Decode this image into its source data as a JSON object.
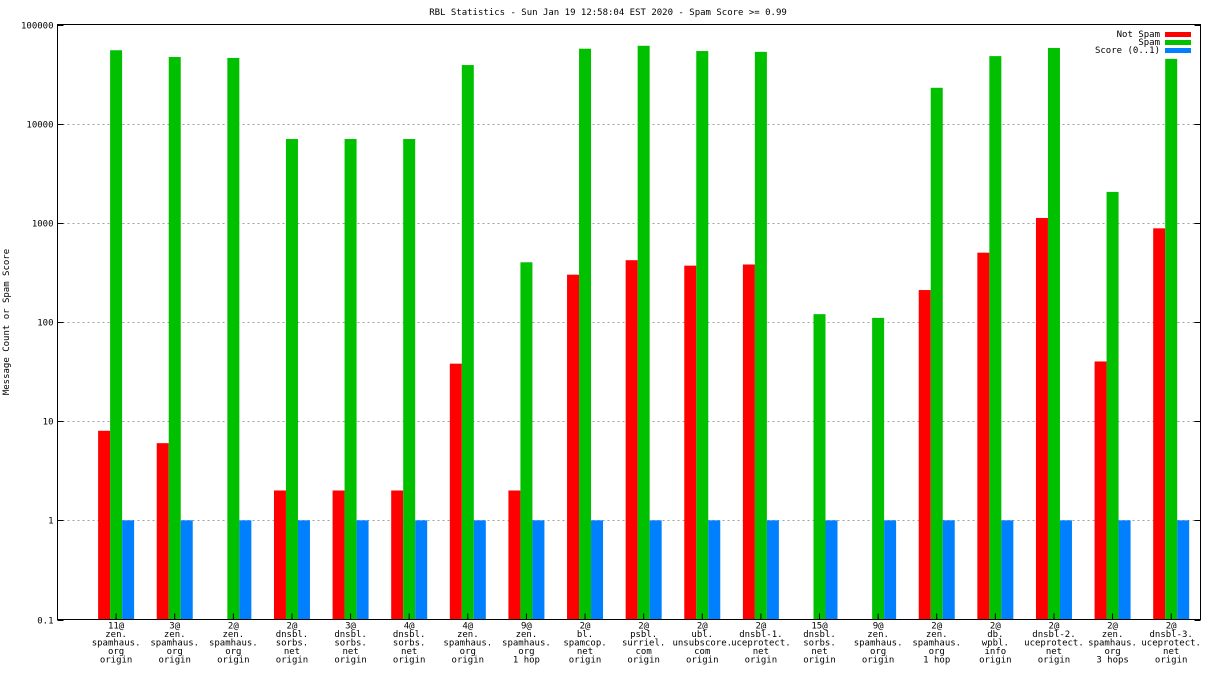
{
  "chart_data": {
    "type": "bar",
    "title": "RBL Statistics - Sun Jan 19 12:58:04 EST 2020 - Spam Score >= 0.99",
    "ylabel": "Message Count or Spam Score",
    "xlabel": "",
    "y_scale": "log",
    "ylim": [
      0.1,
      100000
    ],
    "y_ticks": [
      "0.1",
      "1",
      "10",
      "100",
      "1000",
      "10000",
      "100000"
    ],
    "grid": true,
    "legend_position": "top-right",
    "categories": [
      [
        "11@",
        "zen.",
        "spamhaus.",
        "org",
        "origin"
      ],
      [
        "3@",
        "zen.",
        "spamhaus.",
        "org",
        "origin"
      ],
      [
        "2@",
        "zen.",
        "spamhaus.",
        "org",
        "origin"
      ],
      [
        "2@",
        "dnsbl.",
        "sorbs.",
        "net",
        "origin"
      ],
      [
        "3@",
        "dnsbl.",
        "sorbs.",
        "net",
        "origin"
      ],
      [
        "4@",
        "dnsbl.",
        "sorbs.",
        "net",
        "origin"
      ],
      [
        "4@",
        "zen.",
        "spamhaus.",
        "org",
        "origin"
      ],
      [
        "9@",
        "zen.",
        "spamhaus.",
        "org",
        "1 hop"
      ],
      [
        "2@",
        "bl.",
        "spamcop.",
        "net",
        "origin"
      ],
      [
        "2@",
        "psbl.",
        "surriel.",
        "com",
        "origin"
      ],
      [
        "2@",
        "ubl.",
        "unsubscore.",
        "com",
        "origin"
      ],
      [
        "2@",
        "dnsbl-1.",
        "uceprotect.",
        "net",
        "origin"
      ],
      [
        "15@",
        "dnsbl.",
        "sorbs.",
        "net",
        "origin"
      ],
      [
        "9@",
        "zen.",
        "spamhaus.",
        "org",
        "origin"
      ],
      [
        "2@",
        "zen.",
        "spamhaus.",
        "org",
        "1 hop"
      ],
      [
        "2@",
        "db.",
        "wpbl.",
        "info",
        "origin"
      ],
      [
        "2@",
        "dnsbl-2.",
        "uceprotect.",
        "net",
        "origin"
      ],
      [
        "2@",
        "zen.",
        "spamhaus.",
        "org",
        "3 hops"
      ],
      [
        "2@",
        "dnsbl-3.",
        "uceprotect.",
        "net",
        "origin"
      ]
    ],
    "series": [
      {
        "name": "Not Spam",
        "color": "#ff0000",
        "values": [
          8,
          6,
          null,
          2,
          2,
          2,
          38,
          2,
          300,
          420,
          370,
          380,
          null,
          null,
          210,
          500,
          1120,
          40,
          880
        ]
      },
      {
        "name": "Spam",
        "color": "#00c000",
        "values": [
          55000,
          47000,
          46000,
          7000,
          7000,
          7000,
          39000,
          400,
          57000,
          61000,
          54000,
          53000,
          120,
          110,
          23000,
          48000,
          58000,
          2050,
          45000
        ]
      },
      {
        "name": "Score (0..1)",
        "color": "#0080ff",
        "values": [
          1,
          1,
          1,
          1,
          1,
          1,
          1,
          1,
          1,
          1,
          1,
          1,
          1,
          1,
          1,
          1,
          1,
          1,
          1
        ]
      }
    ]
  }
}
